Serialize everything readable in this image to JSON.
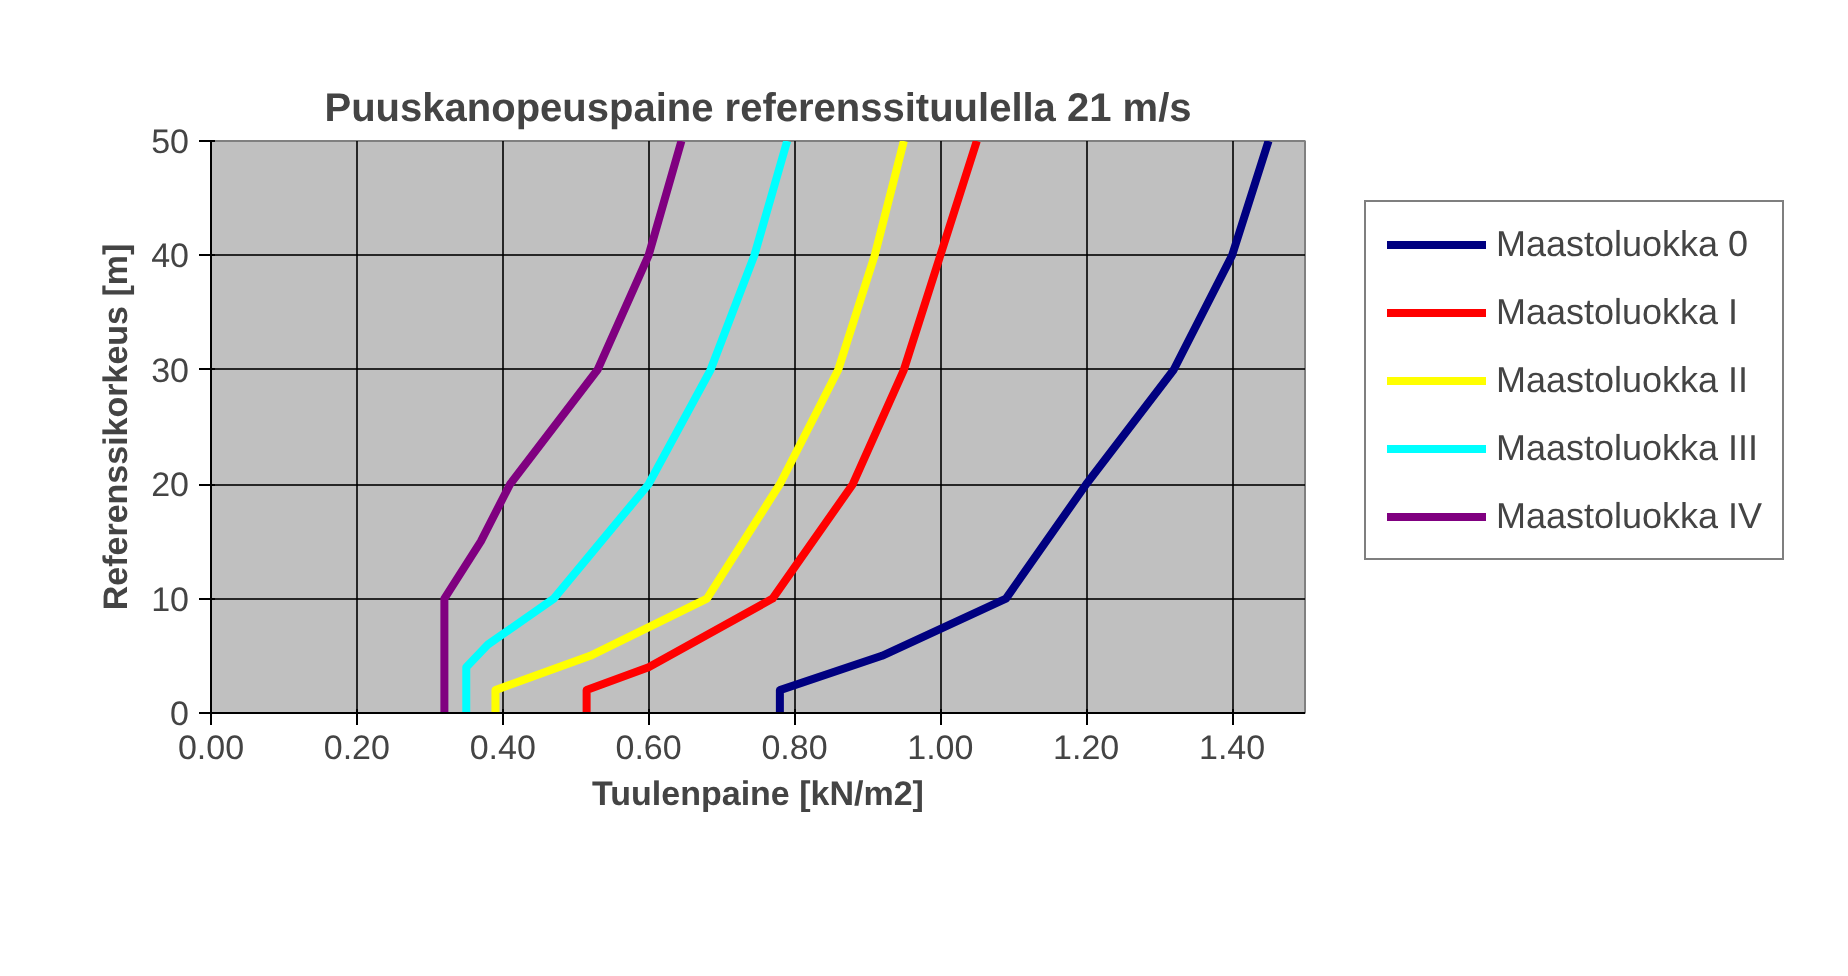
{
  "chart_data": {
    "type": "line",
    "title": "Puuskanopeuspaine referenssituulella 21 m/s",
    "xlabel": "Tuulenpaine [kN/m2]",
    "ylabel": "Referenssikorkeus [m]",
    "xlim": [
      0,
      1.5
    ],
    "xticks": [
      {
        "value": 0,
        "label": "0.00"
      },
      {
        "value": 0.2,
        "label": "0.20"
      },
      {
        "value": 0.4,
        "label": "0.40"
      },
      {
        "value": 0.6,
        "label": "0.60"
      },
      {
        "value": 0.8,
        "label": "0.80"
      },
      {
        "value": 1.0,
        "label": "1.00"
      },
      {
        "value": 1.2,
        "label": "1.20"
      },
      {
        "value": 1.4,
        "label": "1.40"
      }
    ],
    "ylim": [
      0,
      50
    ],
    "yticks": [
      0,
      10,
      20,
      30,
      40,
      50
    ],
    "grid": true,
    "legend": "right",
    "marker": "none",
    "line_style": "solid",
    "series": [
      {
        "name": "Maastoluokka 0",
        "color": "#000080",
        "x": [
          0.78,
          0.78,
          0.92,
          1.09,
          1.2,
          1.32,
          1.4,
          1.45
        ],
        "values": [
          0,
          2,
          5,
          10,
          20,
          30,
          40,
          50
        ]
      },
      {
        "name": "Maastoluokka I",
        "color": "#ff0000",
        "x": [
          0.515,
          0.515,
          0.6,
          0.77,
          0.88,
          0.95,
          1.0,
          1.05
        ],
        "values": [
          0,
          2,
          4,
          10,
          20,
          30,
          40,
          50
        ]
      },
      {
        "name": "Maastoluokka II",
        "color": "#ffff00",
        "x": [
          0.39,
          0.39,
          0.52,
          0.68,
          0.78,
          0.86,
          0.91,
          0.95
        ],
        "values": [
          0,
          2,
          5,
          10,
          20,
          30,
          40,
          50
        ]
      },
      {
        "name": "Maastoluokka III",
        "color": "#00ffff",
        "x": [
          0.35,
          0.35,
          0.38,
          0.47,
          0.6,
          0.685,
          0.745,
          0.79
        ],
        "values": [
          0,
          4,
          6,
          10,
          20,
          30,
          40,
          50
        ]
      },
      {
        "name": "Maastoluokka IV",
        "color": "#800080",
        "x": [
          0.32,
          0.32,
          0.37,
          0.41,
          0.53,
          0.6,
          0.645
        ],
        "values": [
          0,
          10,
          15,
          20,
          30,
          40,
          50
        ]
      }
    ]
  }
}
